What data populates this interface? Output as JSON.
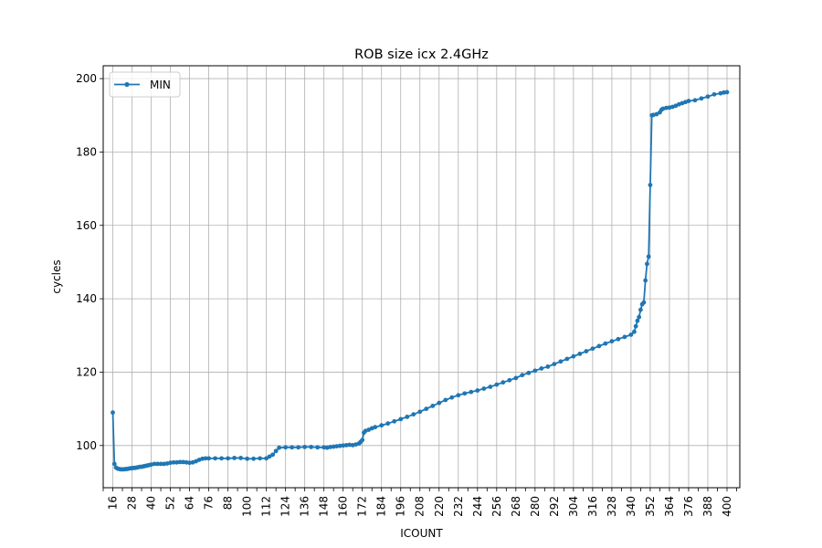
{
  "chart_data": {
    "type": "line",
    "title": "ROB size icx 2.4GHz",
    "xlabel": "ICOUNT",
    "ylabel": "cycles",
    "xlim": [
      10,
      408
    ],
    "ylim": [
      88.5,
      203.5
    ],
    "x_ticks": [
      16,
      28,
      40,
      52,
      64,
      76,
      88,
      100,
      112,
      124,
      136,
      148,
      160,
      172,
      184,
      196,
      208,
      220,
      232,
      244,
      256,
      268,
      280,
      292,
      304,
      316,
      328,
      340,
      352,
      364,
      376,
      388,
      400
    ],
    "x_minor_ticks": [
      10,
      22,
      34,
      46,
      58,
      70,
      82,
      94,
      106,
      118,
      130,
      142,
      154,
      166,
      178,
      190,
      202,
      214,
      226,
      238,
      250,
      262,
      274,
      286,
      298,
      310,
      322,
      334,
      346,
      358,
      370,
      382,
      394,
      406
    ],
    "y_ticks": [
      100,
      120,
      140,
      160,
      180,
      200
    ],
    "grid": true,
    "legend_position": "upper-left",
    "series": [
      {
        "name": "MIN",
        "color": "#1f77b4",
        "marker": "circle",
        "points": [
          [
            16,
            109
          ],
          [
            17,
            95
          ],
          [
            18,
            94
          ],
          [
            19,
            93.7
          ],
          [
            20,
            93.6
          ],
          [
            21,
            93.5
          ],
          [
            22,
            93.5
          ],
          [
            23,
            93.5
          ],
          [
            24,
            93.6
          ],
          [
            25,
            93.6
          ],
          [
            26,
            93.7
          ],
          [
            27,
            93.8
          ],
          [
            28,
            93.8
          ],
          [
            29,
            93.9
          ],
          [
            30,
            93.9
          ],
          [
            31,
            94
          ],
          [
            32,
            94.1
          ],
          [
            33,
            94.2
          ],
          [
            34,
            94.2
          ],
          [
            35,
            94.3
          ],
          [
            36,
            94.4
          ],
          [
            37,
            94.5
          ],
          [
            38,
            94.6
          ],
          [
            39,
            94.7
          ],
          [
            40,
            94.8
          ],
          [
            42,
            95
          ],
          [
            44,
            95
          ],
          [
            46,
            95
          ],
          [
            48,
            95
          ],
          [
            50,
            95.1
          ],
          [
            52,
            95.3
          ],
          [
            54,
            95.4
          ],
          [
            56,
            95.4
          ],
          [
            58,
            95.5
          ],
          [
            60,
            95.5
          ],
          [
            62,
            95.4
          ],
          [
            64,
            95.3
          ],
          [
            66,
            95.4
          ],
          [
            68,
            95.7
          ],
          [
            70,
            96.1
          ],
          [
            72,
            96.4
          ],
          [
            74,
            96.5
          ],
          [
            76,
            96.5
          ],
          [
            80,
            96.5
          ],
          [
            84,
            96.5
          ],
          [
            88,
            96.5
          ],
          [
            92,
            96.6
          ],
          [
            96,
            96.6
          ],
          [
            100,
            96.4
          ],
          [
            104,
            96.4
          ],
          [
            108,
            96.5
          ],
          [
            112,
            96.5
          ],
          [
            114,
            97
          ],
          [
            116,
            97.5
          ],
          [
            118,
            98.5
          ],
          [
            120,
            99.4
          ],
          [
            124,
            99.5
          ],
          [
            128,
            99.5
          ],
          [
            132,
            99.5
          ],
          [
            136,
            99.6
          ],
          [
            140,
            99.6
          ],
          [
            144,
            99.5
          ],
          [
            148,
            99.5
          ],
          [
            150,
            99.4
          ],
          [
            152,
            99.6
          ],
          [
            154,
            99.7
          ],
          [
            156,
            99.8
          ],
          [
            158,
            99.9
          ],
          [
            160,
            100
          ],
          [
            162,
            100.1
          ],
          [
            164,
            100.2
          ],
          [
            166,
            100.1
          ],
          [
            168,
            100.3
          ],
          [
            170,
            100.6
          ],
          [
            171,
            101
          ],
          [
            172,
            101.5
          ],
          [
            173,
            103.5
          ],
          [
            174,
            104
          ],
          [
            176,
            104.3
          ],
          [
            178,
            104.7
          ],
          [
            180,
            105
          ],
          [
            184,
            105.5
          ],
          [
            188,
            106
          ],
          [
            192,
            106.6
          ],
          [
            196,
            107.2
          ],
          [
            200,
            107.8
          ],
          [
            204,
            108.5
          ],
          [
            208,
            109.2
          ],
          [
            212,
            110
          ],
          [
            216,
            110.8
          ],
          [
            220,
            111.6
          ],
          [
            224,
            112.4
          ],
          [
            228,
            113.1
          ],
          [
            232,
            113.7
          ],
          [
            236,
            114.2
          ],
          [
            240,
            114.6
          ],
          [
            244,
            115
          ],
          [
            248,
            115.5
          ],
          [
            252,
            116
          ],
          [
            256,
            116.6
          ],
          [
            260,
            117.2
          ],
          [
            264,
            117.8
          ],
          [
            268,
            118.4
          ],
          [
            272,
            119.2
          ],
          [
            276,
            119.8
          ],
          [
            280,
            120.4
          ],
          [
            284,
            121
          ],
          [
            288,
            121.5
          ],
          [
            292,
            122.2
          ],
          [
            296,
            122.9
          ],
          [
            300,
            123.6
          ],
          [
            304,
            124.3
          ],
          [
            308,
            125
          ],
          [
            312,
            125.7
          ],
          [
            316,
            126.4
          ],
          [
            320,
            127.1
          ],
          [
            324,
            127.8
          ],
          [
            328,
            128.4
          ],
          [
            332,
            129
          ],
          [
            336,
            129.6
          ],
          [
            340,
            130.2
          ],
          [
            342,
            131
          ],
          [
            343,
            132.5
          ],
          [
            344,
            134
          ],
          [
            345,
            135
          ],
          [
            346,
            137
          ],
          [
            347,
            138.5
          ],
          [
            348,
            139
          ],
          [
            349,
            145
          ],
          [
            350,
            149.5
          ],
          [
            351,
            151.5
          ],
          [
            352,
            171
          ],
          [
            353,
            190
          ],
          [
            354,
            190.1
          ],
          [
            356,
            190.3
          ],
          [
            358,
            190.8
          ],
          [
            359,
            191.5
          ],
          [
            360,
            191.8
          ],
          [
            362,
            192
          ],
          [
            364,
            192.1
          ],
          [
            366,
            192.3
          ],
          [
            368,
            192.6
          ],
          [
            370,
            193
          ],
          [
            372,
            193.3
          ],
          [
            374,
            193.6
          ],
          [
            376,
            193.9
          ],
          [
            380,
            194.1
          ],
          [
            384,
            194.6
          ],
          [
            388,
            195.1
          ],
          [
            392,
            195.7
          ],
          [
            396,
            196
          ],
          [
            398,
            196.2
          ],
          [
            400,
            196.3
          ]
        ]
      }
    ]
  }
}
